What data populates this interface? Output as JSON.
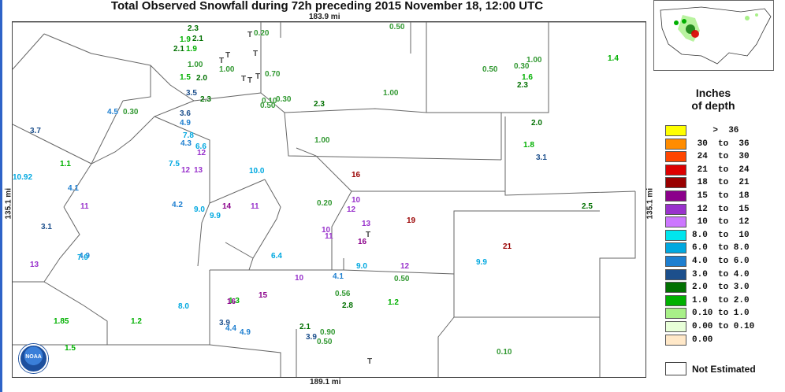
{
  "title": "Total Observed Snowfall during 72h preceding 2015 November 18, 12:00 UTC",
  "distances": {
    "top": "183.9 mi",
    "bottom": "189.1 mi",
    "left": "135.1 mi",
    "right": "135.1 mi"
  },
  "legend": {
    "title_line1": "Inches",
    "title_line2": "of depth",
    "items": [
      {
        "label": "    >  36",
        "color": "#ffff00"
      },
      {
        "label": " 30  to  36",
        "color": "#ff8c00"
      },
      {
        "label": " 24  to  30",
        "color": "#ff4500"
      },
      {
        "label": " 21  to  24",
        "color": "#dd0000"
      },
      {
        "label": " 18  to  21",
        "color": "#990000"
      },
      {
        "label": " 15  to  18",
        "color": "#8b008b"
      },
      {
        "label": " 12  to  15",
        "color": "#9932cc"
      },
      {
        "label": " 10  to  12",
        "color": "#cc77ff"
      },
      {
        "label": "8.0  to  10",
        "color": "#00e5ee"
      },
      {
        "label": "6.0  to 8.0",
        "color": "#00a8e0"
      },
      {
        "label": "4.0  to 6.0",
        "color": "#1e7fd0"
      },
      {
        "label": "3.0  to 4.0",
        "color": "#1c4f8c"
      },
      {
        "label": "2.0  to 3.0",
        "color": "#007000"
      },
      {
        "label": "1.0  to 2.0",
        "color": "#00b000"
      },
      {
        "label": "0.10 to 1.0",
        "color": "#a8f088"
      },
      {
        "label": "0.00 to 0.10",
        "color": "#e8ffd8"
      },
      {
        "label": "0.00",
        "color": "#ffe8c8"
      }
    ],
    "not_estimated": "Not Estimated"
  },
  "logo_text": "NOAA",
  "observations": [
    {
      "v": "2.3",
      "c": "#007000"
    },
    {
      "v": "1.9",
      "c": "#00b000"
    },
    {
      "v": "2.1",
      "c": "#007000"
    },
    {
      "v": "2.1",
      "c": "#007000"
    },
    {
      "v": "1.9",
      "c": "#00b000"
    },
    {
      "v": "T",
      "c": "#444444"
    },
    {
      "v": "T",
      "c": "#444444"
    },
    {
      "v": "0.20",
      "c": "#339933"
    },
    {
      "v": "T",
      "c": "#444444"
    },
    {
      "v": "0.50",
      "c": "#339933"
    },
    {
      "v": "1.00",
      "c": "#339933"
    },
    {
      "v": "1.00",
      "c": "#339933"
    },
    {
      "v": "T",
      "c": "#444444"
    },
    {
      "v": "T",
      "c": "#444444"
    },
    {
      "v": "1.5",
      "c": "#00b000"
    },
    {
      "v": "2.0",
      "c": "#007000"
    },
    {
      "v": "T",
      "c": "#444444"
    },
    {
      "v": "T",
      "c": "#444444"
    },
    {
      "v": "0.70",
      "c": "#339933"
    },
    {
      "v": "1.4",
      "c": "#00b000"
    },
    {
      "v": "0.50",
      "c": "#339933"
    },
    {
      "v": "0.30",
      "c": "#339933"
    },
    {
      "v": "1.00",
      "c": "#339933"
    },
    {
      "v": "1.6",
      "c": "#00b000"
    },
    {
      "v": "2.3",
      "c": "#007000"
    },
    {
      "v": "3.5",
      "c": "#1c4f8c"
    },
    {
      "v": "2.3",
      "c": "#007000"
    },
    {
      "v": "1.00",
      "c": "#339933"
    },
    {
      "v": "0.10",
      "c": "#339933"
    },
    {
      "v": "0.30",
      "c": "#339933"
    },
    {
      "v": "0.50",
      "c": "#339933"
    },
    {
      "v": "2.3",
      "c": "#007000"
    },
    {
      "v": "4.5",
      "c": "#1e7fd0"
    },
    {
      "v": "0.30",
      "c": "#339933"
    },
    {
      "v": "3.6",
      "c": "#1c4f8c"
    },
    {
      "v": "4.9",
      "c": "#1e7fd0"
    },
    {
      "v": "2.0",
      "c": "#007000"
    },
    {
      "v": "3.7",
      "c": "#1c4f8c"
    },
    {
      "v": "7.8",
      "c": "#00a8e0"
    },
    {
      "v": "1.00",
      "c": "#339933"
    },
    {
      "v": "1.8",
      "c": "#00b000"
    },
    {
      "v": "4.3",
      "c": "#1e7fd0"
    },
    {
      "v": "6.6",
      "c": "#00a8e0"
    },
    {
      "v": "12",
      "c": "#9932cc"
    },
    {
      "v": "3.1",
      "c": "#1c4f8c"
    },
    {
      "v": "1.1",
      "c": "#00b000"
    },
    {
      "v": "7.5",
      "c": "#00a8e0"
    },
    {
      "v": "10.0",
      "c": "#00a8e0"
    },
    {
      "v": "16",
      "c": "#990000"
    },
    {
      "v": "10.92",
      "c": "#00a8e0"
    },
    {
      "v": "12",
      "c": "#9932cc"
    },
    {
      "v": "13",
      "c": "#9932cc"
    },
    {
      "v": "4.1",
      "c": "#1e7fd0"
    },
    {
      "v": "12",
      "c": "#9932cc"
    },
    {
      "v": "2.5",
      "c": "#007000"
    },
    {
      "v": "11",
      "c": "#9932cc"
    },
    {
      "v": "4.2",
      "c": "#1e7fd0"
    },
    {
      "v": "9.0",
      "c": "#00a8e0"
    },
    {
      "v": "14",
      "c": "#8b008b"
    },
    {
      "v": "11",
      "c": "#9932cc"
    },
    {
      "v": "0.20",
      "c": "#339933"
    },
    {
      "v": "10",
      "c": "#9932cc"
    },
    {
      "v": "19",
      "c": "#990000"
    },
    {
      "v": "9.9",
      "c": "#00a8e0"
    },
    {
      "v": "13",
      "c": "#9932cc"
    },
    {
      "v": "3.1",
      "c": "#1c4f8c"
    },
    {
      "v": "10",
      "c": "#9932cc"
    },
    {
      "v": "11",
      "c": "#9932cc"
    },
    {
      "v": "16",
      "c": "#8b008b"
    },
    {
      "v": "T",
      "c": "#444444"
    },
    {
      "v": "1.3",
      "c": "#00b000"
    },
    {
      "v": "4.9",
      "c": "#1e7fd0"
    },
    {
      "v": "7.9",
      "c": "#00a8e0"
    },
    {
      "v": "21",
      "c": "#990000"
    },
    {
      "v": "13",
      "c": "#9932cc"
    },
    {
      "v": "6.4",
      "c": "#00a8e0"
    },
    {
      "v": "9.0",
      "c": "#00a8e0"
    },
    {
      "v": "12",
      "c": "#9932cc"
    },
    {
      "v": "9.9",
      "c": "#00a8e0"
    },
    {
      "v": "4.1",
      "c": "#1e7fd0"
    },
    {
      "v": "10",
      "c": "#9932cc"
    },
    {
      "v": "16",
      "c": "#8b008b"
    },
    {
      "v": "15",
      "c": "#8b008b"
    },
    {
      "v": "0.56",
      "c": "#339933"
    },
    {
      "v": "1.2",
      "c": "#00b000"
    },
    {
      "v": "8.0",
      "c": "#00a8e0"
    },
    {
      "v": "2.8",
      "c": "#007000"
    },
    {
      "v": "0.50",
      "c": "#339933"
    },
    {
      "v": "1.2",
      "c": "#00b000"
    },
    {
      "v": "1.85",
      "c": "#00b000"
    },
    {
      "v": "3.9",
      "c": "#1c4f8c"
    },
    {
      "v": "4.4",
      "c": "#1e7fd0"
    },
    {
      "v": "4.9",
      "c": "#1e7fd0"
    },
    {
      "v": "1.5",
      "c": "#00b000"
    },
    {
      "v": "0.50",
      "c": "#339933"
    },
    {
      "v": "0.10",
      "c": "#339933"
    },
    {
      "v": "T",
      "c": "#444444"
    },
    {
      "v": "3.9",
      "c": "#1c4f8c"
    },
    {
      "v": "0.90",
      "c": "#339933"
    },
    {
      "v": "2.1",
      "c": "#007000"
    }
  ]
}
